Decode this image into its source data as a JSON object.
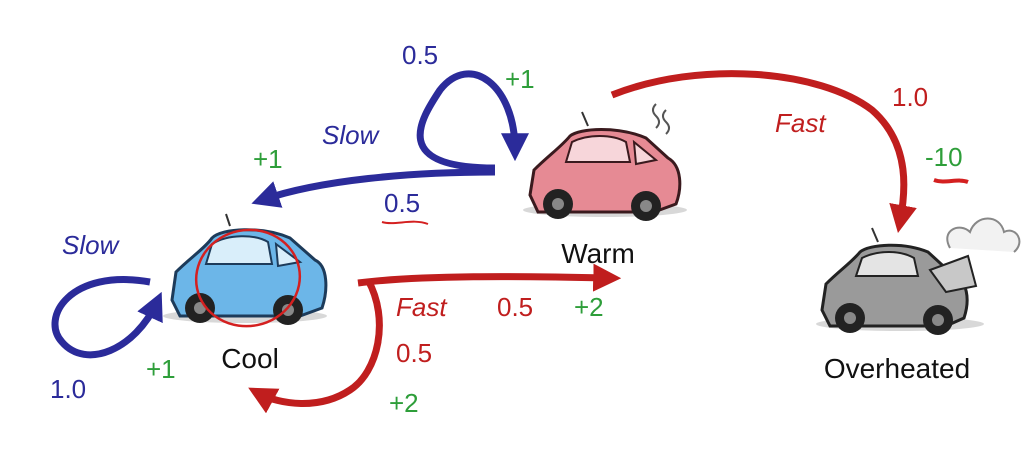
{
  "colors": {
    "slow": "#2b2b9a",
    "fast": "#c01e1e",
    "reward": "#2e9e3a",
    "cool_car": "#6cb6e8",
    "warm_car": "#e68a94",
    "overheated_car": "#9a9a9a",
    "annotation": "#d42020"
  },
  "states": {
    "cool": "Cool",
    "warm": "Warm",
    "overheated": "Overheated"
  },
  "transitions": {
    "cool_slow": {
      "action": "Slow",
      "prob": "1.0",
      "reward": "+1"
    },
    "cool_fast_warm": {
      "action": "Fast",
      "prob": "0.5",
      "reward": "+2"
    },
    "cool_fast_cool": {
      "prob": "0.5",
      "reward": "+2"
    },
    "warm_slow_warm": {
      "prob": "0.5",
      "reward": "+1"
    },
    "warm_slow_cool": {
      "action": "Slow",
      "prob": "0.5",
      "reward": "+1"
    },
    "warm_fast": {
      "action": "Fast",
      "prob": "1.0",
      "reward": "-10"
    }
  },
  "icons": [
    "cool-car-icon",
    "warm-car-icon",
    "overheated-car-icon"
  ]
}
